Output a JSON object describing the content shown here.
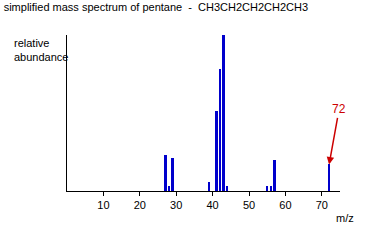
{
  "chart_data": {
    "type": "bar",
    "title": "simplified mass spectrum of pentane  -  CH3CH2CH2CH2CH3",
    "y_label": "relative abundance",
    "x_label": "m/z",
    "x": [
      27,
      28,
      29,
      39,
      41,
      42,
      43,
      44,
      55,
      56,
      57,
      72
    ],
    "values": [
      23,
      3,
      21,
      6,
      51,
      78,
      100,
      3,
      3,
      3,
      20,
      17
    ],
    "color": "#0000cc",
    "xlim": [
      0,
      75
    ],
    "xticks": [
      10,
      20,
      30,
      40,
      50,
      60,
      70
    ],
    "ylim": [
      0,
      100
    ],
    "tick_labels": "x",
    "grid": false,
    "annotations": [
      {
        "text": "72",
        "x": 72,
        "y": 17,
        "color": "#cc0000"
      }
    ]
  }
}
